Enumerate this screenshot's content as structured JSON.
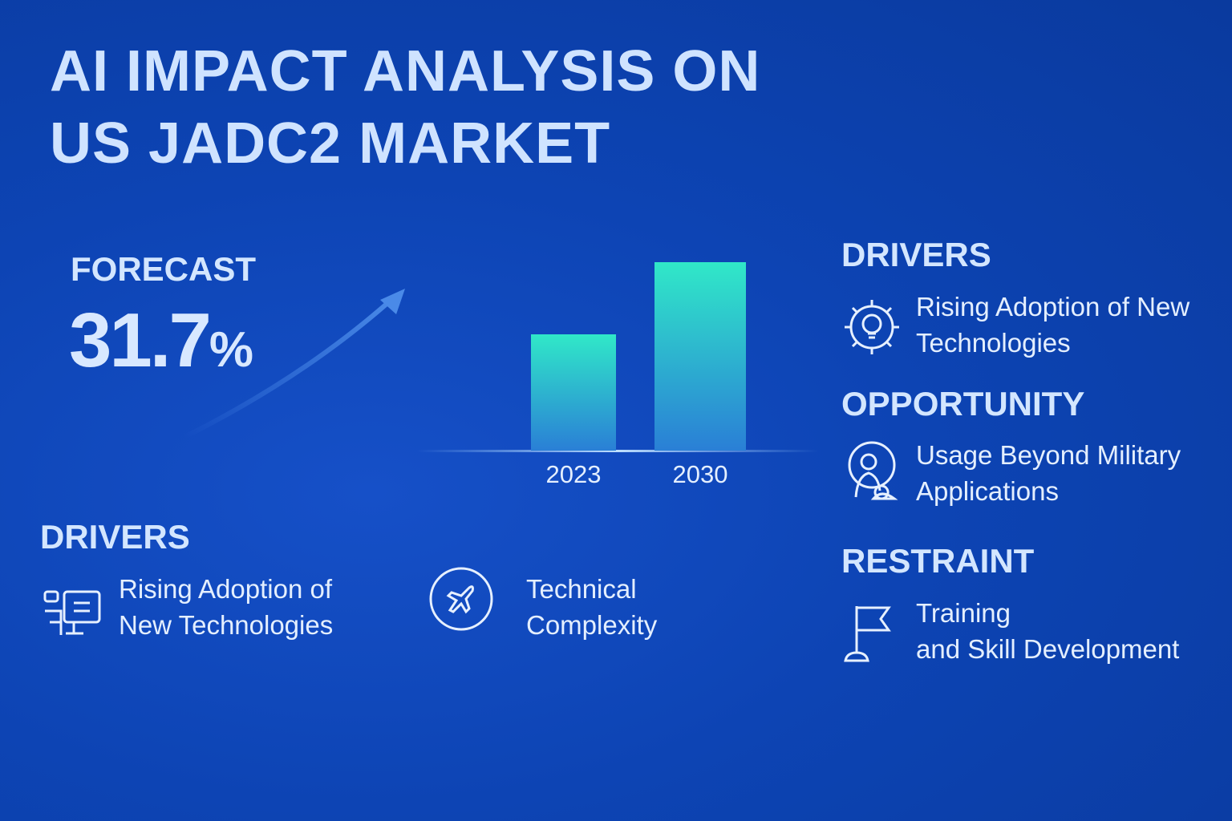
{
  "header": {
    "title_lines": [
      "AI IMPACT ANALYSIS ON",
      "US JADC2 MARKET"
    ]
  },
  "forecast": {
    "label": "FORECAST",
    "value": "31.7",
    "unit": "%"
  },
  "chart_data": {
    "type": "bar",
    "categories": [
      "2023",
      "2030"
    ],
    "values": [
      145,
      235
    ],
    "ylim": [
      0,
      240
    ]
  },
  "bottom": {
    "heading": "DRIVERS",
    "items": [
      {
        "lines": [
          "Rising Adoption of",
          "New Technologies"
        ]
      },
      {
        "lines": [
          "Technical",
          "Complexity"
        ]
      }
    ]
  },
  "right": [
    {
      "heading": "DRIVERS",
      "lines": [
        "Rising Adoption of New",
        "Technologies"
      ]
    },
    {
      "heading": "OPPORTUNITY",
      "lines": [
        "Usage Beyond Military",
        "Applications"
      ]
    },
    {
      "heading": "RESTRAINT",
      "lines": [
        "Training",
        "and Skill Development"
      ]
    }
  ]
}
